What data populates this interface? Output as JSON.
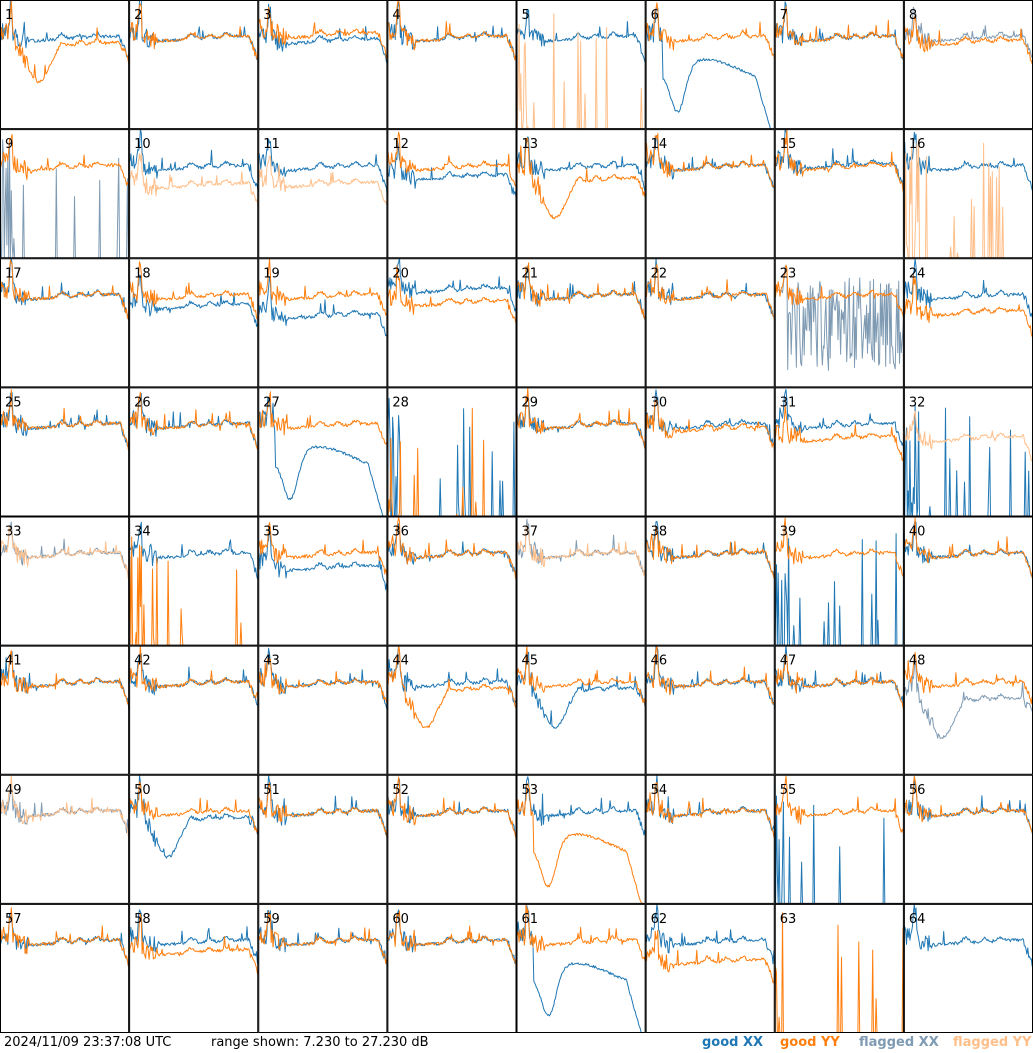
{
  "timestamp": "2024/11/09 23:37:08 UTC",
  "range_text": "range shown: 7.230 to 27.230 dB",
  "legend": [
    {
      "label": "good XX",
      "color": "#1f77b4"
    },
    {
      "label": "good YY",
      "color": "#ff7f0e"
    },
    {
      "label": "flagged XX",
      "color": "#7f9bb3"
    },
    {
      "label": "flagged YY",
      "color": "#ffbf8a"
    }
  ],
  "chart_data": {
    "type": "line",
    "layout": "small-multiples 8x8",
    "ylim_db": [
      7.23,
      27.23
    ],
    "colors": {
      "good_xx": "#1f77b4",
      "good_yy": "#ff7f0e",
      "flagged_xx": "#7f9bb3",
      "flagged_yy": "#ffbf8a"
    },
    "panel_labels": [
      "1",
      "2",
      "3",
      "4",
      "5",
      "6",
      "7",
      "8",
      "9",
      "10",
      "11",
      "12",
      "13",
      "14",
      "15",
      "16",
      "17",
      "18",
      "19",
      "20",
      "21",
      "22",
      "23",
      "24",
      "25",
      "26",
      "27",
      "28",
      "29",
      "30",
      "31",
      "32",
      "33",
      "34",
      "35",
      "36",
      "37",
      "38",
      "39",
      "40",
      "41",
      "42",
      "43",
      "44",
      "45",
      "46",
      "47",
      "48",
      "49",
      "50",
      "51",
      "52",
      "53",
      "54",
      "55",
      "56",
      "57",
      "58",
      "59",
      "60",
      "61",
      "62",
      "63",
      "64"
    ],
    "panels": [
      {
        "xx": "normal",
        "yy": "dip",
        "xs": "g",
        "ys": "g",
        "o": 0.0,
        "p": 0.0
      },
      {
        "xx": "normal",
        "yy": "normal",
        "xs": "g",
        "ys": "g",
        "o": 0.0,
        "p": 0.0
      },
      {
        "xx": "normal",
        "yy": "normal",
        "xs": "g",
        "ys": "g",
        "o": -0.4,
        "p": 0.5
      },
      {
        "xx": "normal",
        "yy": "normal",
        "xs": "g",
        "ys": "g",
        "o": 0.0,
        "p": 0.0
      },
      {
        "xx": "normal",
        "yy": "spikes",
        "xs": "g",
        "ys": "f",
        "o": 0.0,
        "p": 0.0
      },
      {
        "xx": "deepdip",
        "yy": "normal",
        "xs": "g",
        "ys": "g",
        "o": 0.0,
        "p": 0.0
      },
      {
        "xx": "normal",
        "yy": "normal",
        "xs": "g",
        "ys": "g",
        "o": 0.0,
        "p": 0.0
      },
      {
        "xx": "normal",
        "yy": "normal",
        "xs": "f",
        "ys": "g",
        "o": 0.0,
        "p": -0.6
      },
      {
        "xx": "spikes",
        "yy": "normal",
        "xs": "f",
        "ys": "g",
        "o": 0.0,
        "p": 0.0
      },
      {
        "xx": "normal",
        "yy": "normal",
        "xs": "g",
        "ys": "f",
        "o": 0.0,
        "p": -2.8
      },
      {
        "xx": "normal",
        "yy": "normal",
        "xs": "g",
        "ys": "f",
        "o": 0.0,
        "p": -2.6
      },
      {
        "xx": "normal",
        "yy": "normal",
        "xs": "g",
        "ys": "g",
        "o": -1.5,
        "p": 0.0
      },
      {
        "xx": "normal",
        "yy": "dip",
        "xs": "g",
        "ys": "g",
        "o": 0.0,
        "p": -1.0
      },
      {
        "xx": "normal",
        "yy": "normal",
        "xs": "g",
        "ys": "g",
        "o": 0.0,
        "p": 0.0
      },
      {
        "xx": "normal",
        "yy": "normal",
        "xs": "g",
        "ys": "g",
        "o": 0.3,
        "p": 0.0
      },
      {
        "xx": "normal",
        "yy": "spikes",
        "xs": "g",
        "ys": "f",
        "o": 0.0,
        "p": 0.0
      },
      {
        "xx": "normal",
        "yy": "normal",
        "xs": "g",
        "ys": "g",
        "o": 0.0,
        "p": 0.0
      },
      {
        "xx": "normal",
        "yy": "normal",
        "xs": "g",
        "ys": "g",
        "o": -1.5,
        "p": 0.0
      },
      {
        "xx": "normal",
        "yy": "normal",
        "xs": "g",
        "ys": "g",
        "o": -3.0,
        "p": 0.0
      },
      {
        "xx": "normal",
        "yy": "normal",
        "xs": "g",
        "ys": "g",
        "o": 1.0,
        "p": -1.0
      },
      {
        "xx": "normal",
        "yy": "normal",
        "xs": "g",
        "ys": "g",
        "o": 0.0,
        "p": 0.0
      },
      {
        "xx": "normal",
        "yy": "normal",
        "xs": "g",
        "ys": "g",
        "o": 0.0,
        "p": 0.0
      },
      {
        "xx": "noise",
        "yy": "normal",
        "xs": "f",
        "ys": "g",
        "o": 0.0,
        "p": 0.0
      },
      {
        "xx": "normal",
        "yy": "normal",
        "xs": "g",
        "ys": "g",
        "o": 0.0,
        "p": -2.5
      },
      {
        "xx": "normal",
        "yy": "normal",
        "xs": "g",
        "ys": "g",
        "o": 0.0,
        "p": 0.0
      },
      {
        "xx": "normal",
        "yy": "normal",
        "xs": "g",
        "ys": "g",
        "o": 0.0,
        "p": 0.0
      },
      {
        "xx": "deepdip",
        "yy": "normal",
        "xs": "g",
        "ys": "g",
        "o": 0.0,
        "p": 0.0
      },
      {
        "xx": "spikes",
        "yy": "spikes",
        "xs": "g",
        "ys": "g",
        "o": 0.0,
        "p": 0.0
      },
      {
        "xx": "normal",
        "yy": "normal",
        "xs": "g",
        "ys": "g",
        "o": 0.0,
        "p": 0.0
      },
      {
        "xx": "normal",
        "yy": "normal",
        "xs": "g",
        "ys": "g",
        "o": 0.0,
        "p": -0.5
      },
      {
        "xx": "normal",
        "yy": "normal",
        "xs": "g",
        "ys": "g",
        "o": 0.0,
        "p": -2.0
      },
      {
        "xx": "spikes",
        "yy": "normal",
        "xs": "g",
        "ys": "f",
        "o": 0.0,
        "p": -2.0
      },
      {
        "xx": "normal",
        "yy": "normal",
        "xs": "f",
        "ys": "f",
        "o": 0.0,
        "p": 0.0
      },
      {
        "xx": "normal",
        "yy": "spikes",
        "xs": "g",
        "ys": "g",
        "o": 0.0,
        "p": 0.0
      },
      {
        "xx": "normal",
        "yy": "normal",
        "xs": "g",
        "ys": "g",
        "o": -2.0,
        "p": 0.0
      },
      {
        "xx": "normal",
        "yy": "normal",
        "xs": "g",
        "ys": "g",
        "o": 0.0,
        "p": 0.0
      },
      {
        "xx": "normal",
        "yy": "normal",
        "xs": "f",
        "ys": "f",
        "o": 0.0,
        "p": 0.0
      },
      {
        "xx": "normal",
        "yy": "normal",
        "xs": "g",
        "ys": "g",
        "o": 0.0,
        "p": 0.0
      },
      {
        "xx": "spikes",
        "yy": "normal",
        "xs": "g",
        "ys": "g",
        "o": 0.0,
        "p": 0.0
      },
      {
        "xx": "normal",
        "yy": "normal",
        "xs": "g",
        "ys": "g",
        "o": 0.0,
        "p": 0.0
      },
      {
        "xx": "normal",
        "yy": "normal",
        "xs": "g",
        "ys": "g",
        "o": 0.0,
        "p": 0.0
      },
      {
        "xx": "normal",
        "yy": "normal",
        "xs": "g",
        "ys": "g",
        "o": 0.0,
        "p": 0.0
      },
      {
        "xx": "normal",
        "yy": "normal",
        "xs": "g",
        "ys": "g",
        "o": 0.0,
        "p": 0.0
      },
      {
        "xx": "normal",
        "yy": "dip",
        "xs": "g",
        "ys": "g",
        "o": 0.0,
        "p": 0.0
      },
      {
        "xx": "dip",
        "yy": "normal",
        "xs": "g",
        "ys": "g",
        "o": 0.0,
        "p": 0.0
      },
      {
        "xx": "normal",
        "yy": "normal",
        "xs": "g",
        "ys": "g",
        "o": 0.0,
        "p": 0.0
      },
      {
        "xx": "normal",
        "yy": "normal",
        "xs": "g",
        "ys": "g",
        "o": 0.0,
        "p": 0.0
      },
      {
        "xx": "dip",
        "yy": "normal",
        "xs": "f",
        "ys": "g",
        "o": -1.5,
        "p": 0.0
      },
      {
        "xx": "normal",
        "yy": "normal",
        "xs": "f",
        "ys": "f",
        "o": 0.0,
        "p": 0.0
      },
      {
        "xx": "dip",
        "yy": "normal",
        "xs": "g",
        "ys": "g",
        "o": 0.0,
        "p": 0.0
      },
      {
        "xx": "normal",
        "yy": "normal",
        "xs": "g",
        "ys": "g",
        "o": 0.0,
        "p": 0.0
      },
      {
        "xx": "normal",
        "yy": "normal",
        "xs": "g",
        "ys": "g",
        "o": 0.0,
        "p": 0.0
      },
      {
        "xx": "normal",
        "yy": "deepdip",
        "xs": "g",
        "ys": "g",
        "o": 0.0,
        "p": 0.0
      },
      {
        "xx": "normal",
        "yy": "normal",
        "xs": "g",
        "ys": "g",
        "o": 0.0,
        "p": 0.0
      },
      {
        "xx": "spikes",
        "yy": "normal",
        "xs": "g",
        "ys": "g",
        "o": 0.0,
        "p": 0.0
      },
      {
        "xx": "normal",
        "yy": "normal",
        "xs": "g",
        "ys": "g",
        "o": 0.0,
        "p": 0.0
      },
      {
        "xx": "normal",
        "yy": "normal",
        "xs": "g",
        "ys": "g",
        "o": 0.0,
        "p": 0.0
      },
      {
        "xx": "normal",
        "yy": "normal",
        "xs": "g",
        "ys": "g",
        "o": 0.0,
        "p": -1.5
      },
      {
        "xx": "normal",
        "yy": "normal",
        "xs": "g",
        "ys": "g",
        "o": 0.0,
        "p": 0.0
      },
      {
        "xx": "normal",
        "yy": "normal",
        "xs": "g",
        "ys": "g",
        "o": 0.0,
        "p": 0.0
      },
      {
        "xx": "deepdip",
        "yy": "normal",
        "xs": "g",
        "ys": "g",
        "o": 0.0,
        "p": 0.0
      },
      {
        "xx": "normal",
        "yy": "normal",
        "xs": "g",
        "ys": "g",
        "o": 0.0,
        "p": -3.0
      },
      {
        "xx": "none",
        "yy": "spikes",
        "xs": "g",
        "ys": "g",
        "o": 0.0,
        "p": 0.0
      },
      {
        "xx": "normal",
        "yy": "none",
        "xs": "g",
        "ys": "g",
        "o": 0.0,
        "p": 0.0
      }
    ]
  }
}
